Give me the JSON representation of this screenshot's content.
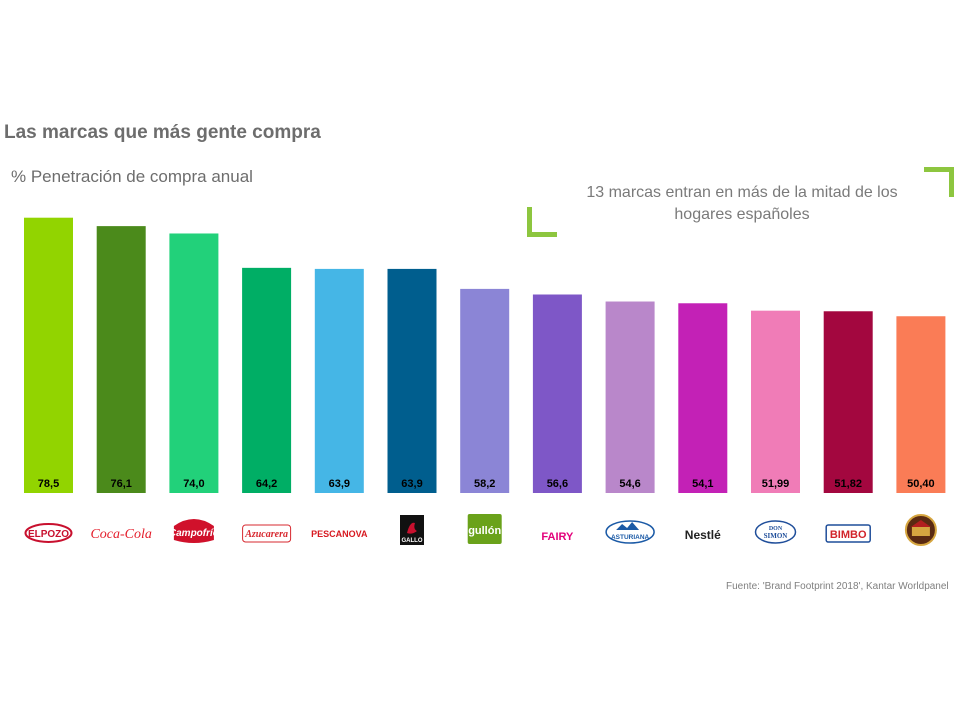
{
  "title": "Las marcas que más gente compra",
  "subtitle": "% Penetración de compra anual",
  "callout": "13 marcas entran en más de la mitad de los hogares españoles",
  "source": "Fuente: 'Brand Footprint 2018', Kantar Worldpanel",
  "accent_color": "#8dc63f",
  "chart_data": {
    "type": "bar",
    "title": "Las marcas que más gente compra",
    "ylabel": "% Penetración de compra anual",
    "categories": [
      "ElPozo",
      "Coca-Cola",
      "Campofrío",
      "Azucarera",
      "Pescanova",
      "Gallo",
      "Gullón",
      "Fairy",
      "Asturiana",
      "Nestlé",
      "Don Simón",
      "Bimbo",
      "La Masía"
    ],
    "values": [
      78.5,
      76.1,
      74.0,
      64.2,
      63.9,
      63.9,
      58.2,
      56.6,
      54.6,
      54.1,
      51.99,
      51.82,
      50.4
    ],
    "value_labels": [
      "78,5",
      "76,1",
      "74,0",
      "64,2",
      "63,9",
      "63,9",
      "58,2",
      "56,6",
      "54,6",
      "54,1",
      "51,99",
      "51,82",
      "50,40"
    ],
    "colors": [
      "#92d400",
      "#4b8a1b",
      "#22d17a",
      "#00ae65",
      "#45b6e6",
      "#005e8e",
      "#8b85d6",
      "#7e57c7",
      "#b987ca",
      "#c321b6",
      "#f07cb7",
      "#a3073f",
      "#fa7c56"
    ],
    "label_colors": [
      "#000000",
      "#000000",
      "#000000",
      "#000000",
      "#000000",
      "#000000",
      "#000000",
      "#000000",
      "#000000",
      "#000000",
      "#000000",
      "#000000",
      "#000000"
    ],
    "logos": [
      {
        "text": "ELPOZO",
        "color": "#c8102e",
        "icon": "elpozo-logo"
      },
      {
        "text": "Coca-Cola",
        "color": "#e41e2b",
        "icon": "cocacola-logo"
      },
      {
        "text": "Campofrío",
        "color": "#d0112b",
        "icon": "campofrio-logo"
      },
      {
        "text": "Azucarera",
        "color": "#d7282f",
        "icon": "azucarera-logo"
      },
      {
        "text": "PESCANOVA",
        "color": "#d71920",
        "icon": "pescanova-logo"
      },
      {
        "text": "GALLO",
        "color": "#c8102e",
        "icon": "gallo-logo"
      },
      {
        "text": "gullón",
        "color": "#ffffff",
        "icon": "gullon-logo"
      },
      {
        "text": "FAIRY",
        "color": "#e3007b",
        "icon": "fairy-logo"
      },
      {
        "text": "ASTURIANA",
        "color": "#1b5aa6",
        "icon": "asturiana-logo"
      },
      {
        "text": "Nestlé",
        "color": "#222222",
        "icon": "nestle-logo"
      },
      {
        "text": "DON SIMON",
        "color": "#1f4e9a",
        "icon": "donsimon-logo"
      },
      {
        "text": "BIMBO",
        "color": "#d2232a",
        "icon": "bimbo-logo"
      },
      {
        "text": "LA MASÍA",
        "color": "#7a1f1f",
        "icon": "lamasia-logo"
      }
    ],
    "ylim": [
      0,
      100
    ],
    "grid": false,
    "legend": "none"
  }
}
